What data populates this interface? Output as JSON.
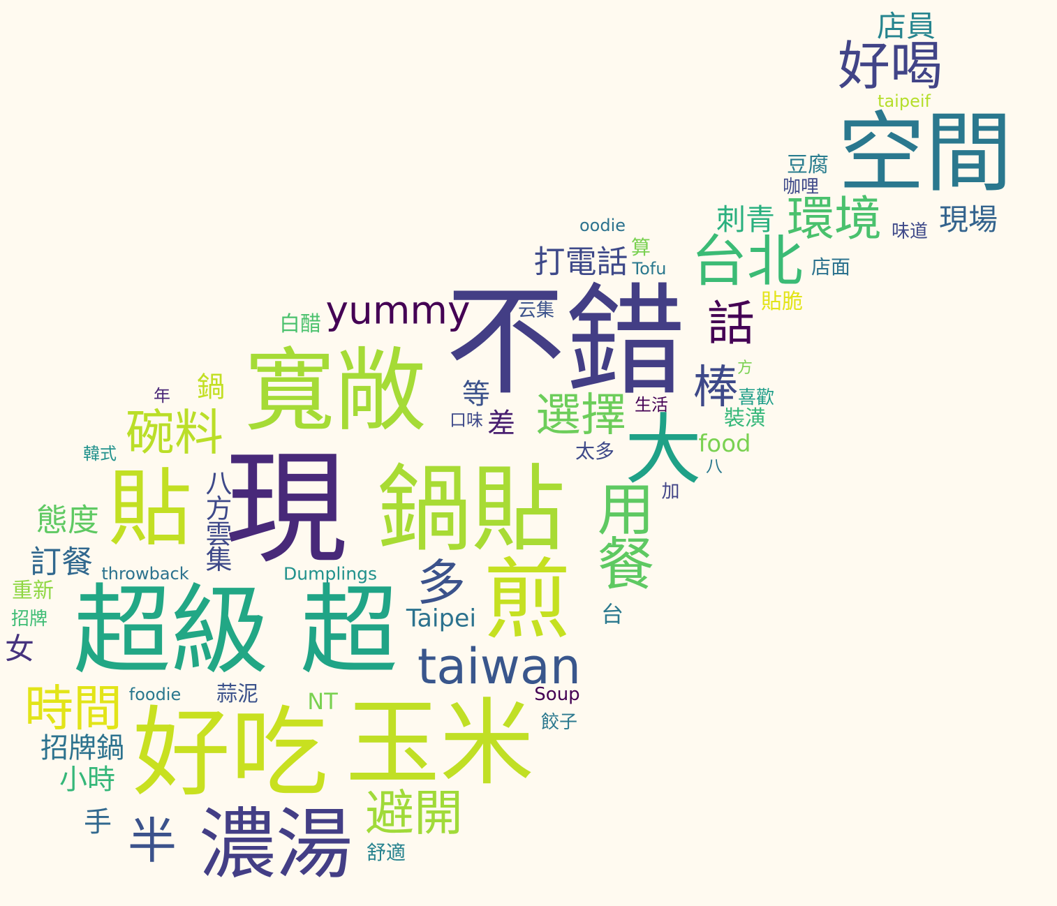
{
  "background": "#fffaf0",
  "words": [
    {
      "text": "不錯",
      "color": "#433e85"
    },
    {
      "text": "現",
      "color": "#482979"
    },
    {
      "text": "空間",
      "color": "#2a788e"
    },
    {
      "text": "寬敞",
      "color": "#a5db36"
    },
    {
      "text": "鍋貼",
      "color": "#a8db34"
    },
    {
      "text": "貼",
      "color": "#c2df23"
    },
    {
      "text": "超級",
      "color": "#22a785"
    },
    {
      "text": "超",
      "color": "#20a486"
    },
    {
      "text": "好吃",
      "color": "#c8e020"
    },
    {
      "text": "玉米",
      "color": "#c0df25"
    },
    {
      "text": "濃湯",
      "color": "#433e85"
    },
    {
      "text": "煎",
      "color": "#c5e021"
    },
    {
      "text": "大",
      "color": "#1fa187"
    },
    {
      "text": "棒",
      "color": "#3e4989"
    },
    {
      "text": "台北",
      "color": "#3bbb75"
    },
    {
      "text": "環境",
      "color": "#4ac16d"
    },
    {
      "text": "好喝",
      "color": "#414487"
    },
    {
      "text": "taiwan",
      "color": "#39568c"
    },
    {
      "text": "yummy",
      "color": "#440154"
    },
    {
      "text": "選擇",
      "color": "#6ccd5a"
    },
    {
      "text": "碗料",
      "color": "#bade28"
    },
    {
      "text": "用餐",
      "color": "#5ec962"
    },
    {
      "text": "避開",
      "color": "#a0da39"
    },
    {
      "text": "時間",
      "color": "#e2e418"
    },
    {
      "text": "話",
      "color": "#440154"
    },
    {
      "text": "多",
      "color": "#3b528b"
    },
    {
      "text": "半",
      "color": "#3b528b"
    },
    {
      "text": "態度",
      "color": "#5ec962"
    },
    {
      "text": "訂餐",
      "color": "#31688e"
    },
    {
      "text": "打電話",
      "color": "#3e4989"
    },
    {
      "text": "刺青",
      "color": "#2ab07f"
    },
    {
      "text": "現場",
      "color": "#33638d"
    },
    {
      "text": "店員",
      "color": "#25848e"
    },
    {
      "text": "八方雲集",
      "color": "#3e4989"
    },
    {
      "text": "招牌鍋",
      "color": "#2c728e"
    },
    {
      "text": "小時",
      "color": "#35b779"
    },
    {
      "text": "Taipei",
      "color": "#2c728e"
    },
    {
      "text": "女",
      "color": "#46337e"
    },
    {
      "text": "手",
      "color": "#31688e"
    },
    {
      "text": "food",
      "color": "#7ad151"
    },
    {
      "text": "鍋",
      "color": "#c2df23"
    },
    {
      "text": "等",
      "color": "#3b528b"
    },
    {
      "text": "差",
      "color": "#481f70"
    },
    {
      "text": "台",
      "color": "#2a788e"
    },
    {
      "text": "throwback",
      "color": "#2c728e"
    },
    {
      "text": "Dumplings",
      "color": "#21918c"
    },
    {
      "text": "重新",
      "color": "#8fd744"
    },
    {
      "text": "招牌",
      "color": "#3dbc74"
    },
    {
      "text": "foodie",
      "color": "#2a788e"
    },
    {
      "text": "蒜泥",
      "color": "#3b528b"
    },
    {
      "text": "NT",
      "color": "#7ad151"
    },
    {
      "text": "Soup",
      "color": "#440154"
    },
    {
      "text": "餃子",
      "color": "#2a788e"
    },
    {
      "text": "舒適",
      "color": "#26828e"
    },
    {
      "text": "taipeif",
      "color": "#b5de2b"
    },
    {
      "text": "豆腐",
      "color": "#287c8e"
    },
    {
      "text": "咖哩",
      "color": "#3e4989"
    },
    {
      "text": "oodie",
      "color": "#2c728e"
    },
    {
      "text": "算",
      "color": "#7ad151"
    },
    {
      "text": "Tofu",
      "color": "#2a788e"
    },
    {
      "text": "味道",
      "color": "#3e4989"
    },
    {
      "text": "店面",
      "color": "#2c728e"
    },
    {
      "text": "貼脆",
      "color": "#e2e418"
    },
    {
      "text": "白醋",
      "color": "#4ac16d"
    },
    {
      "text": "云集",
      "color": "#3b528b"
    },
    {
      "text": "方",
      "color": "#7ad151"
    },
    {
      "text": "喜歡",
      "color": "#1f9e89"
    },
    {
      "text": "年",
      "color": "#482576"
    },
    {
      "text": "生活",
      "color": "#440154"
    },
    {
      "text": "口味",
      "color": "#3e4989"
    },
    {
      "text": "裝潢",
      "color": "#35b779"
    },
    {
      "text": "太多",
      "color": "#3e4989"
    },
    {
      "text": "韓式",
      "color": "#21918c"
    },
    {
      "text": "八",
      "color": "#2a788e"
    },
    {
      "text": "加",
      "color": "#414487"
    }
  ]
}
